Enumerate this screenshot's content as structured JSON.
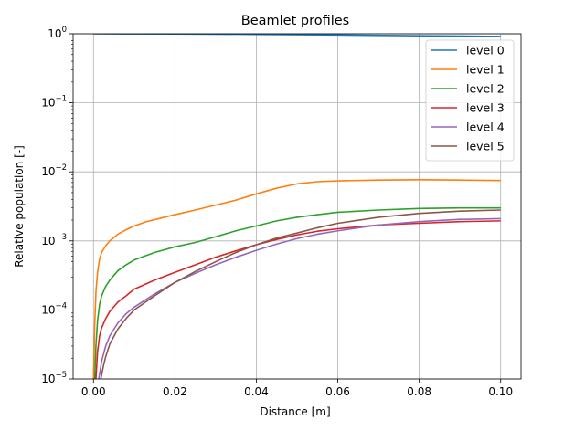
{
  "chart_data": {
    "type": "line",
    "title": "Beamlet profiles",
    "xlabel": "Distance [m]",
    "ylabel": "Relative population [-]",
    "xlim": [
      -0.005,
      0.105
    ],
    "ylim": [
      1e-05,
      1
    ],
    "yscale": "log",
    "grid": true,
    "legend_position": "top-right",
    "x_ticks": [
      0.0,
      0.02,
      0.04,
      0.06,
      0.08,
      0.1
    ],
    "x_tick_labels": [
      "0.00",
      "0.02",
      "0.04",
      "0.06",
      "0.08",
      "0.10"
    ],
    "y_ticks": [
      1e-05,
      0.0001,
      0.001,
      0.01,
      0.1,
      1
    ],
    "y_tick_labels": [
      {
        "base": "10",
        "exp": "−5"
      },
      {
        "base": "10",
        "exp": "−4"
      },
      {
        "base": "10",
        "exp": "−3"
      },
      {
        "base": "10",
        "exp": "−2"
      },
      {
        "base": "10",
        "exp": "−1"
      },
      {
        "base": "10",
        "exp": "0"
      }
    ],
    "series": [
      {
        "name": "level 0",
        "color": "#1f77b4",
        "points": [
          [
            0.0,
            1.0
          ],
          [
            0.02,
            0.995
          ],
          [
            0.04,
            0.98
          ],
          [
            0.06,
            0.96
          ],
          [
            0.08,
            0.935
          ],
          [
            0.1,
            0.915
          ]
        ]
      },
      {
        "name": "level 1",
        "color": "#ff7f0e",
        "points": [
          [
            0.0,
            1e-05
          ],
          [
            0.0003,
            6e-05
          ],
          [
            0.0006,
            0.00018
          ],
          [
            0.001,
            0.00035
          ],
          [
            0.0015,
            0.00055
          ],
          [
            0.002,
            0.00068
          ],
          [
            0.003,
            0.00085
          ],
          [
            0.004,
            0.001
          ],
          [
            0.006,
            0.00125
          ],
          [
            0.008,
            0.00145
          ],
          [
            0.01,
            0.00165
          ],
          [
            0.013,
            0.0019
          ],
          [
            0.016,
            0.0021
          ],
          [
            0.02,
            0.0024
          ],
          [
            0.025,
            0.0028
          ],
          [
            0.03,
            0.0033
          ],
          [
            0.035,
            0.0039
          ],
          [
            0.04,
            0.0048
          ],
          [
            0.045,
            0.0058
          ],
          [
            0.05,
            0.0067
          ],
          [
            0.055,
            0.0072
          ],
          [
            0.06,
            0.0074
          ],
          [
            0.07,
            0.0076
          ],
          [
            0.08,
            0.0077
          ],
          [
            0.09,
            0.0076
          ],
          [
            0.1,
            0.0075
          ]
        ]
      },
      {
        "name": "level 2",
        "color": "#2ca02c",
        "points": [
          [
            0.0003,
            1e-05
          ],
          [
            0.0006,
            3e-05
          ],
          [
            0.001,
            7e-05
          ],
          [
            0.0015,
            0.00012
          ],
          [
            0.002,
            0.00016
          ],
          [
            0.003,
            0.00022
          ],
          [
            0.004,
            0.00027
          ],
          [
            0.006,
            0.00037
          ],
          [
            0.008,
            0.00045
          ],
          [
            0.01,
            0.00053
          ],
          [
            0.015,
            0.00068
          ],
          [
            0.02,
            0.00082
          ],
          [
            0.025,
            0.00095
          ],
          [
            0.03,
            0.00115
          ],
          [
            0.035,
            0.0014
          ],
          [
            0.04,
            0.00165
          ],
          [
            0.045,
            0.00195
          ],
          [
            0.05,
            0.0022
          ],
          [
            0.055,
            0.0024
          ],
          [
            0.06,
            0.0026
          ],
          [
            0.07,
            0.0028
          ],
          [
            0.08,
            0.00295
          ],
          [
            0.09,
            0.003
          ],
          [
            0.1,
            0.003
          ]
        ]
      },
      {
        "name": "level 3",
        "color": "#d62728",
        "points": [
          [
            0.0006,
            1e-05
          ],
          [
            0.001,
            2.5e-05
          ],
          [
            0.0015,
            4.2e-05
          ],
          [
            0.002,
            5.5e-05
          ],
          [
            0.003,
            7.5e-05
          ],
          [
            0.004,
            9.5e-05
          ],
          [
            0.006,
            0.00013
          ],
          [
            0.008,
            0.00016
          ],
          [
            0.01,
            0.0002
          ],
          [
            0.015,
            0.00027
          ],
          [
            0.02,
            0.00035
          ],
          [
            0.025,
            0.00045
          ],
          [
            0.03,
            0.00058
          ],
          [
            0.035,
            0.00072
          ],
          [
            0.04,
            0.00088
          ],
          [
            0.045,
            0.00105
          ],
          [
            0.05,
            0.00122
          ],
          [
            0.055,
            0.00138
          ],
          [
            0.06,
            0.0015
          ],
          [
            0.07,
            0.0017
          ],
          [
            0.08,
            0.0018
          ],
          [
            0.09,
            0.0019
          ],
          [
            0.1,
            0.00195
          ]
        ]
      },
      {
        "name": "level 4",
        "color": "#9467bd",
        "points": [
          [
            0.0013,
            1e-05
          ],
          [
            0.002,
            1.8e-05
          ],
          [
            0.003,
            3e-05
          ],
          [
            0.004,
            4.2e-05
          ],
          [
            0.006,
            6.5e-05
          ],
          [
            0.008,
            8.8e-05
          ],
          [
            0.01,
            0.00011
          ],
          [
            0.015,
            0.00017
          ],
          [
            0.02,
            0.00025
          ],
          [
            0.025,
            0.00034
          ],
          [
            0.03,
            0.00045
          ],
          [
            0.035,
            0.00058
          ],
          [
            0.04,
            0.00073
          ],
          [
            0.045,
            0.0009
          ],
          [
            0.05,
            0.00108
          ],
          [
            0.055,
            0.00125
          ],
          [
            0.06,
            0.0014
          ],
          [
            0.07,
            0.0017
          ],
          [
            0.08,
            0.0019
          ],
          [
            0.09,
            0.00205
          ],
          [
            0.1,
            0.0021
          ]
        ]
      },
      {
        "name": "level 5",
        "color": "#8c564b",
        "points": [
          [
            0.0018,
            1e-05
          ],
          [
            0.0025,
            1.6e-05
          ],
          [
            0.003,
            2.1e-05
          ],
          [
            0.004,
            3.2e-05
          ],
          [
            0.006,
            5.3e-05
          ],
          [
            0.008,
            7.5e-05
          ],
          [
            0.01,
            0.0001
          ],
          [
            0.015,
            0.00016
          ],
          [
            0.02,
            0.00025
          ],
          [
            0.025,
            0.00036
          ],
          [
            0.03,
            0.0005
          ],
          [
            0.035,
            0.00068
          ],
          [
            0.04,
            0.00088
          ],
          [
            0.045,
            0.0011
          ],
          [
            0.05,
            0.0013
          ],
          [
            0.055,
            0.00155
          ],
          [
            0.06,
            0.0018
          ],
          [
            0.07,
            0.0022
          ],
          [
            0.08,
            0.0025
          ],
          [
            0.09,
            0.0027
          ],
          [
            0.1,
            0.0028
          ]
        ]
      }
    ]
  }
}
